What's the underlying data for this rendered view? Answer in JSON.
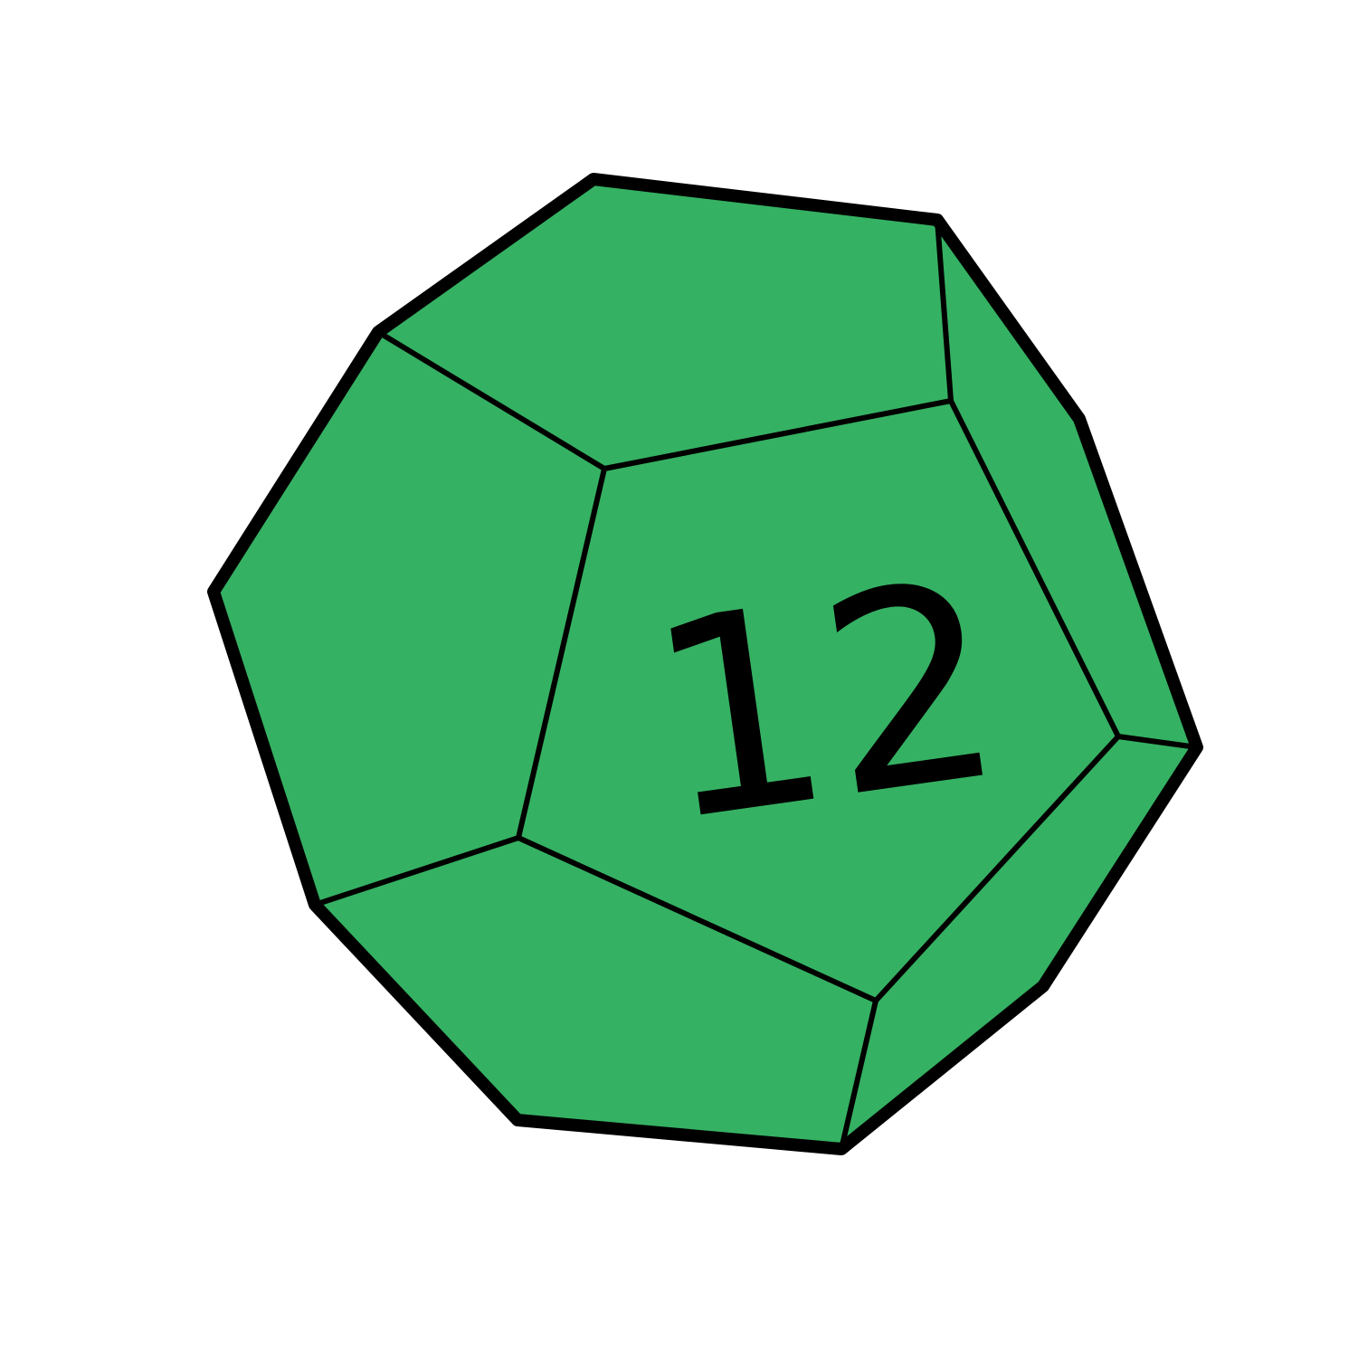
{
  "die": {
    "type": "d12",
    "shape": "dodecahedron",
    "face_number": "12",
    "colors": {
      "fill": "#35B163",
      "stroke": "#000000",
      "number": "#000000",
      "background": "#FFFFFF"
    }
  }
}
